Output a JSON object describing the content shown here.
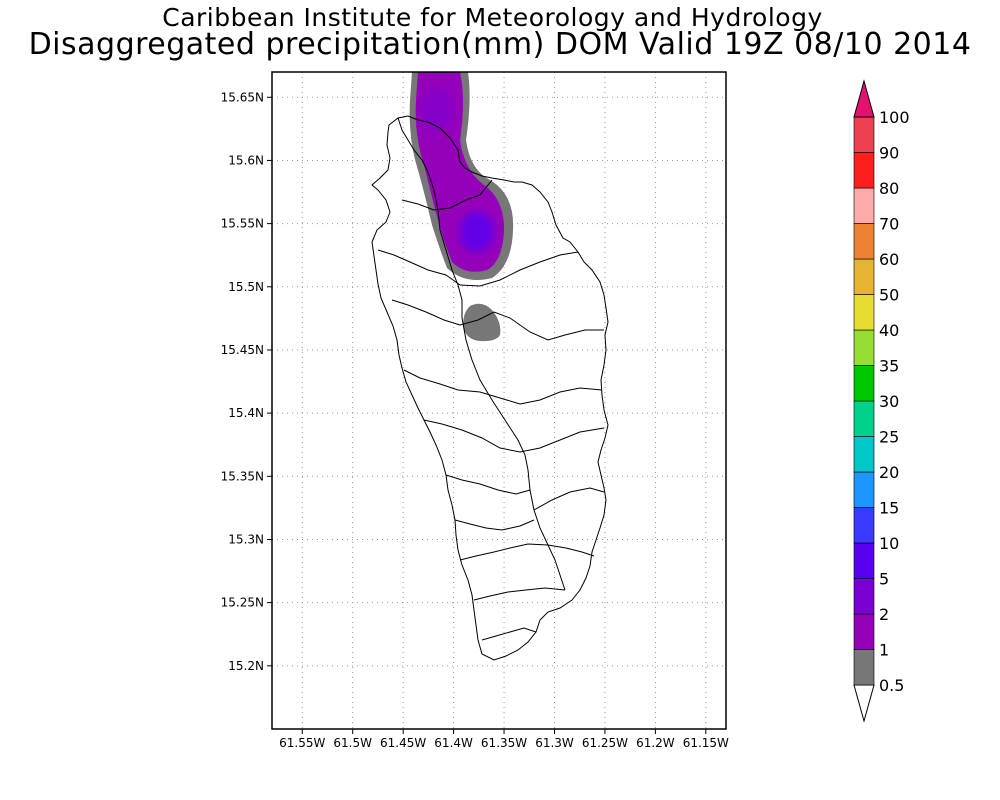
{
  "title": {
    "line1": "Caribbean Institute for Meteorology and Hydrology",
    "line2": "Disaggregated precipitation(mm) DOM Valid 19Z 08/10 2014"
  },
  "map": {
    "region": "Dominica",
    "lon_range": [
      -61.58,
      -61.13
    ],
    "lat_range": [
      15.15,
      15.67
    ],
    "x_ticks": [
      {
        "value": -61.55,
        "label": "61.55W"
      },
      {
        "value": -61.5,
        "label": "61.5W"
      },
      {
        "value": -61.45,
        "label": "61.45W"
      },
      {
        "value": -61.4,
        "label": "61.4W"
      },
      {
        "value": -61.35,
        "label": "61.35W"
      },
      {
        "value": -61.3,
        "label": "61.3W"
      },
      {
        "value": -61.25,
        "label": "61.25W"
      },
      {
        "value": -61.2,
        "label": "61.2W"
      },
      {
        "value": -61.15,
        "label": "61.15W"
      }
    ],
    "y_ticks": [
      {
        "value": 15.65,
        "label": "15.65N"
      },
      {
        "value": 15.6,
        "label": "15.6N"
      },
      {
        "value": 15.55,
        "label": "15.55N"
      },
      {
        "value": 15.5,
        "label": "15.5N"
      },
      {
        "value": 15.45,
        "label": "15.45N"
      },
      {
        "value": 15.4,
        "label": "15.4N"
      },
      {
        "value": 15.35,
        "label": "15.35N"
      },
      {
        "value": 15.3,
        "label": "15.3N"
      },
      {
        "value": 15.25,
        "label": "15.25N"
      },
      {
        "value": 15.2,
        "label": "15.2N"
      }
    ],
    "grid": true
  },
  "legend": {
    "colors": [
      "#777777",
      "#9500bb",
      "#7a00d6",
      "#5a00f0",
      "#3a3aff",
      "#1e96ff",
      "#00c8c8",
      "#00d28c",
      "#00c800",
      "#96dc32",
      "#e6dc32",
      "#e6b432",
      "#ee8232",
      "#ffaaaa",
      "#ff1e1e",
      "#ee4050",
      "#e8106e"
    ],
    "labels": [
      {
        "value": 0.5,
        "text": "0.5"
      },
      {
        "value": 1,
        "text": "1"
      },
      {
        "value": 2,
        "text": "2"
      },
      {
        "value": 5,
        "text": "5"
      },
      {
        "value": 10,
        "text": "10"
      },
      {
        "value": 15,
        "text": "15"
      },
      {
        "value": 20,
        "text": "20"
      },
      {
        "value": 25,
        "text": "25"
      },
      {
        "value": 30,
        "text": "30"
      },
      {
        "value": 35,
        "text": "35"
      },
      {
        "value": 40,
        "text": "40"
      },
      {
        "value": 50,
        "text": "50"
      },
      {
        "value": 60,
        "text": "60"
      },
      {
        "value": 70,
        "text": "70"
      },
      {
        "value": 80,
        "text": "80"
      },
      {
        "value": 90,
        "text": "90"
      },
      {
        "value": 100,
        "text": "100"
      }
    ]
  },
  "precip_areas": [
    {
      "name": "north-band",
      "level_mm": 0.5,
      "color": "#777777"
    },
    {
      "name": "north-band-core",
      "level_mm": 1,
      "color": "#9500bb"
    },
    {
      "name": "north-band-peak",
      "level_mm": 5,
      "color": "#5a00f0"
    },
    {
      "name": "central-cell",
      "level_mm": 0.5,
      "color": "#777777"
    }
  ]
}
